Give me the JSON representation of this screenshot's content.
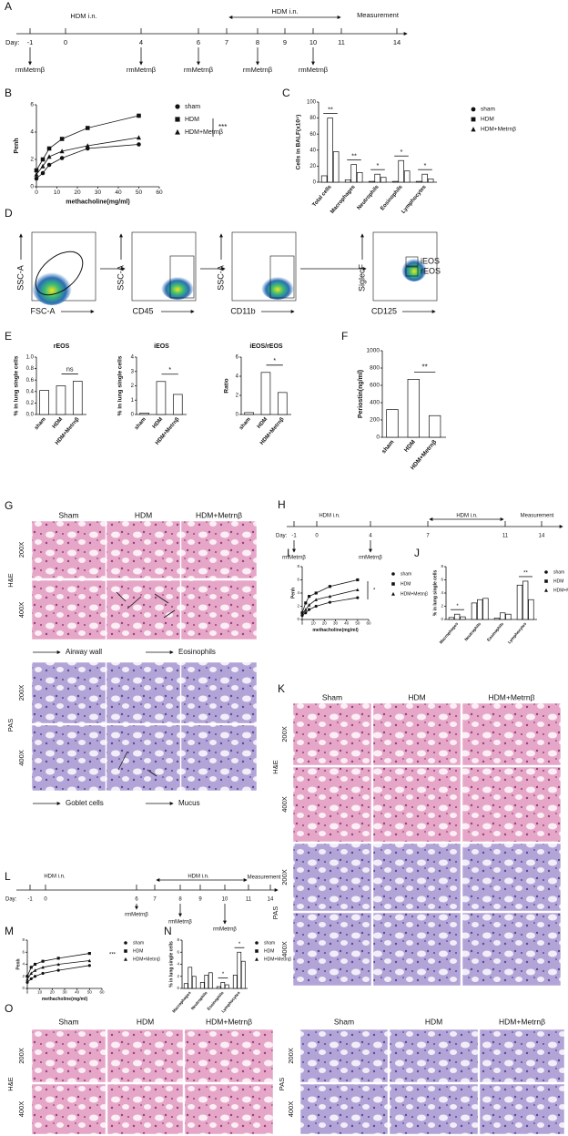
{
  "panels": [
    "A",
    "B",
    "C",
    "D",
    "E",
    "F",
    "G",
    "H",
    "I",
    "J",
    "K",
    "L",
    "M",
    "N",
    "O"
  ],
  "timelines": [
    {
      "day_label": "Day:",
      "days": [
        -1,
        0,
        4,
        6,
        7,
        8,
        9,
        10,
        11,
        14
      ],
      "labels": [
        "HDM i.n.",
        "HDM i.n.",
        "Measurement"
      ],
      "treatment": "rmMetrnβ"
    },
    {
      "day_label": "Day:",
      "days": [
        -1,
        0,
        4,
        7,
        11,
        14
      ],
      "labels": [
        "HDM i.n.",
        "HDM i.n.",
        "Measurement"
      ],
      "treatment": "rmMetrnβ"
    },
    {
      "day_label": "Day:",
      "days": [
        -1,
        0,
        6,
        7,
        8,
        9,
        10,
        11,
        14
      ],
      "labels": [
        "HDM i.n.",
        "HDM i.n.",
        "Measurement"
      ],
      "treatment": "rmMetrnβ"
    }
  ],
  "flow": [
    {
      "y": "SSC-A",
      "x": "FSC-A"
    },
    {
      "y": "SSC-A",
      "x": "CD45"
    },
    {
      "y": "SSC-A",
      "x": "CD11b"
    },
    {
      "y": "SiglecF",
      "x": "CD125",
      "gates": [
        "iEOS",
        "rEOS"
      ]
    }
  ],
  "histology": [
    {
      "columns": [
        "Sham",
        "HDM",
        "HDM+Metrnβ"
      ],
      "magnifications": [
        "200X",
        "400X"
      ],
      "stains": [
        "H&E",
        "PAS"
      ],
      "legend": [
        "Airway wall",
        "Eosinophils",
        "Goblet cells",
        "Mucus"
      ]
    },
    {
      "columns": [
        "Sham",
        "HDM",
        "HDM+Metrnβ"
      ],
      "magnifications": [
        "200X",
        "400X"
      ],
      "stains": [
        "H&E",
        "PAS"
      ]
    },
    {
      "columns": [
        "Sham",
        "HDM",
        "HDM+Metrnβ"
      ],
      "magnifications": [
        "200X",
        "400X"
      ],
      "stains": [
        "H&E"
      ]
    },
    {
      "columns": [
        "Sham",
        "HDM",
        "HDM+Metrnβ"
      ],
      "magnifications": [
        "200X",
        "400X"
      ],
      "stains": [
        "PAS"
      ]
    }
  ],
  "chart_data": [
    {
      "type": "line",
      "ylabel": "Penh",
      "xlabel": "methacholine(mg/ml)",
      "x": [
        0,
        3.125,
        6.25,
        12.5,
        25,
        50
      ],
      "series": [
        {
          "name": "sham",
          "color": "#111111",
          "values": [
            0.6,
            1.0,
            1.6,
            2.1,
            2.8,
            3.1
          ]
        },
        {
          "name": "HDM",
          "color": "#111111",
          "values": [
            1.2,
            2.0,
            2.8,
            3.5,
            4.3,
            5.2
          ]
        },
        {
          "name": "HDM+Metrnβ",
          "color": "#111111",
          "values": [
            0.9,
            1.5,
            2.2,
            2.6,
            3.0,
            3.6
          ]
        }
      ],
      "xlim": [
        0,
        60
      ],
      "xticks": [
        0,
        10,
        20,
        30,
        40,
        50,
        60
      ],
      "ylim": [
        0,
        6
      ],
      "yticks": [
        0,
        2,
        4,
        6
      ],
      "annotation": "***"
    },
    {
      "type": "bar",
      "ylabel": "Cells in BALF(x10⁴)",
      "categories": [
        "Total cells",
        "Macrophages",
        "Neutrophils",
        "Eosinophils",
        "Lymphocytes"
      ],
      "series": [
        {
          "name": "sham",
          "color": "#ffffff",
          "values": [
            8,
            3,
            1,
            1,
            1
          ]
        },
        {
          "name": "HDM",
          "color": "#ffffff",
          "values": [
            80,
            22,
            10,
            27,
            10
          ]
        },
        {
          "name": "HDM+Metrnβ",
          "color": "#ffffff",
          "values": [
            38,
            12,
            6,
            14,
            4
          ]
        }
      ],
      "ylim": [
        0,
        100
      ],
      "yticks": [
        0,
        20,
        40,
        60,
        80,
        100
      ],
      "annotations": [
        {
          "category": "Total cells",
          "text": "**"
        },
        {
          "category": "Macrophages",
          "text": "**"
        },
        {
          "category": "Neutrophils",
          "text": "*"
        },
        {
          "category": "Eosinophils",
          "text": "*"
        },
        {
          "category": "Lymphocytes",
          "text": "*"
        }
      ]
    },
    {
      "type": "bar",
      "title": "rEOS",
      "ylabel": "% in lung single cells",
      "categories": [
        "sham",
        "HDM",
        "HDM+Metrnβ"
      ],
      "values": [
        0.42,
        0.5,
        0.58
      ],
      "color": "#ffffff",
      "ylim": [
        0,
        1
      ],
      "yticks": [
        {
          "value": 0,
          "label": "0.0"
        },
        0.2,
        0.4,
        0.6,
        0.8,
        {
          "value": 1,
          "label": "1.0"
        }
      ],
      "annotation": "ns"
    },
    {
      "type": "bar",
      "title": "iEOS",
      "ylabel": "% in lung single cells",
      "categories": [
        "sham",
        "HDM",
        "HDM+Metrnβ"
      ],
      "values": [
        0.1,
        2.3,
        1.4
      ],
      "color": "#ffffff",
      "ylim": [
        0,
        4
      ],
      "yticks": [
        0,
        1,
        2,
        3,
        4
      ],
      "annotation": "*"
    },
    {
      "type": "bar",
      "title": "iEOS/rEOS",
      "ylabel": "Ratio",
      "categories": [
        "sham",
        "HDM",
        "HDM+Metrnβ"
      ],
      "values": [
        0.2,
        4.4,
        2.3
      ],
      "color": "#ffffff",
      "ylim": [
        0,
        6
      ],
      "yticks": [
        0,
        2,
        4,
        6
      ],
      "annotation": "*"
    },
    {
      "type": "bar",
      "ylabel": "Periostin(ng/ml)",
      "categories": [
        "sham",
        "HDM",
        "HDM+Metrnβ"
      ],
      "values": [
        320,
        670,
        250
      ],
      "color": "#ffffff",
      "ylim": [
        0,
        1000
      ],
      "yticks": [
        0,
        200,
        400,
        600,
        800,
        1000
      ],
      "annotation": "**"
    },
    {
      "type": "line",
      "ylabel": "Penh",
      "xlabel": "methacholine(mg/ml)",
      "x": [
        0,
        3.125,
        6.25,
        12.5,
        25,
        50
      ],
      "series": [
        {
          "name": "sham",
          "color": "#111111",
          "values": [
            0.6,
            1.0,
            1.5,
            2.0,
            2.6,
            3.3
          ]
        },
        {
          "name": "HDM",
          "color": "#111111",
          "values": [
            1.0,
            2.5,
            3.5,
            4.0,
            5.0,
            6.0
          ]
        },
        {
          "name": "HDM+Metrnβ",
          "color": "#111111",
          "values": [
            0.8,
            1.5,
            2.2,
            3.0,
            3.5,
            4.5
          ]
        }
      ],
      "xlim": [
        0,
        60
      ],
      "xticks": [
        0,
        10,
        20,
        30,
        40,
        50,
        60
      ],
      "ylim": [
        0,
        8
      ],
      "yticks": [
        0,
        2,
        4,
        6,
        8
      ],
      "annotation": "*"
    },
    {
      "type": "bar",
      "ylabel": "% in lung single cells",
      "categories": [
        "Macrophages",
        "Neutrophils",
        "Eosinophils",
        "Lymphocytes"
      ],
      "series": [
        {
          "name": "sham",
          "color": "#ffffff",
          "values": [
            0.3,
            2.5,
            0.2,
            5.2
          ]
        },
        {
          "name": "HDM",
          "color": "#ffffff",
          "values": [
            0.8,
            3.0,
            1.0,
            5.8
          ]
        },
        {
          "name": "HDM+Metrnβ",
          "color": "#ffffff",
          "values": [
            0.4,
            3.2,
            0.8,
            3.0
          ]
        }
      ],
      "ylim": [
        0,
        8
      ],
      "yticks": [
        0,
        2,
        4,
        6,
        8
      ],
      "annotations": [
        {
          "category": "Macrophages",
          "text": "*"
        },
        {
          "category": "Lymphocytes",
          "text": "**"
        }
      ]
    },
    {
      "type": "line",
      "ylabel": "Penh",
      "xlabel": "methacholine(mg/ml)",
      "x": [
        0,
        3.125,
        6.25,
        12.5,
        25,
        50
      ],
      "series": [
        {
          "name": "sham",
          "color": "#111111",
          "values": [
            1.0,
            1.6,
            2.0,
            2.5,
            3.0,
            3.8
          ]
        },
        {
          "name": "HDM",
          "color": "#111111",
          "values": [
            2.0,
            3.5,
            4.0,
            4.5,
            5.0,
            5.8
          ]
        },
        {
          "name": "HDM+Metrnβ",
          "color": "#111111",
          "values": [
            1.5,
            2.5,
            3.0,
            3.5,
            4.0,
            4.6
          ]
        }
      ],
      "xlim": [
        0,
        60
      ],
      "xticks": [
        0,
        10,
        20,
        30,
        40,
        50,
        60
      ],
      "ylim": [
        0,
        8
      ],
      "yticks": [
        0,
        2,
        4,
        6,
        8
      ],
      "annotation": "***"
    },
    {
      "type": "bar",
      "ylabel": "% in lung single cells",
      "categories": [
        "Macrophages",
        "Neutrophils",
        "Eosinophils",
        "Lymphocytes"
      ],
      "series": [
        {
          "name": "sham",
          "color": "#ffffff",
          "values": [
            0.8,
            1.0,
            0.3,
            2.2
          ]
        },
        {
          "name": "HDM",
          "color": "#ffffff",
          "values": [
            3.5,
            2.2,
            1.0,
            6.0
          ]
        },
        {
          "name": "HDM+Metrnβ",
          "color": "#ffffff",
          "values": [
            2.0,
            2.6,
            0.6,
            4.5
          ]
        }
      ],
      "ylim": [
        0,
        8
      ],
      "yticks": [
        0,
        2,
        4,
        6,
        8
      ],
      "annotations": [
        {
          "category": "Eosinophils",
          "text": "*"
        },
        {
          "category": "Lymphocytes",
          "text": "*"
        }
      ]
    }
  ]
}
